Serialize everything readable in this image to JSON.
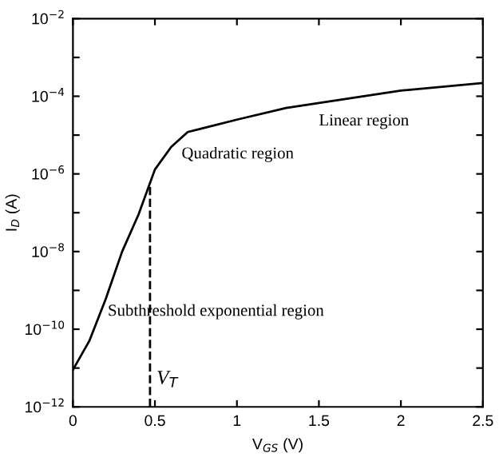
{
  "chart_data": {
    "type": "line",
    "xlabel": "V$_{GS}$ (V)",
    "ylabel": "I$_{D}$ (A)",
    "x": [
      0,
      0.1,
      0.2,
      0.3,
      0.4,
      0.5,
      0.6,
      0.7,
      1.0,
      1.3,
      2.0,
      2.5
    ],
    "series": [
      {
        "color": "#000000",
        "values": [
          9e-12,
          5e-11,
          6e-10,
          1e-08,
          9e-08,
          1.3e-06,
          5e-06,
          1.2e-05,
          2.5e-05,
          5e-05,
          0.00014,
          0.00022
        ]
      }
    ],
    "log": "y",
    "line_style": "solid",
    "marker": "none",
    "grid": false,
    "legend": false,
    "xlim": [
      0,
      2.5
    ],
    "xticks": [
      0,
      0.5,
      1,
      1.5,
      2,
      2.5
    ],
    "ylim": [
      1e-12,
      0.01
    ],
    "yticks": [
      {
        "value": 1e-12,
        "label": "10$^{−12}$"
      },
      {
        "value": 1e-11,
        "label": null
      },
      {
        "value": 1e-10,
        "label": "10$^{−10}$"
      },
      {
        "value": 1e-09,
        "label": null
      },
      {
        "value": 1e-08,
        "label": "10$^{−8}$"
      },
      {
        "value": 1e-07,
        "label": null
      },
      {
        "value": 1e-06,
        "label": "10$^{−6}$"
      },
      {
        "value": 1e-05,
        "label": null
      },
      {
        "value": 0.0001,
        "label": "10$^{−4}$"
      },
      {
        "value": 0.001,
        "label": null
      },
      {
        "value": 0.01,
        "label": "10$^{−2}$"
      }
    ],
    "ref_lines": [
      {
        "axis": "x",
        "value": 0.47,
        "label": "V$_{T}$",
        "line_style": "dashed",
        "color": "#000000"
      }
    ],
    "annotations": [
      "Quadratic region",
      "Linear region",
      "Subthreshold exponential region"
    ]
  }
}
